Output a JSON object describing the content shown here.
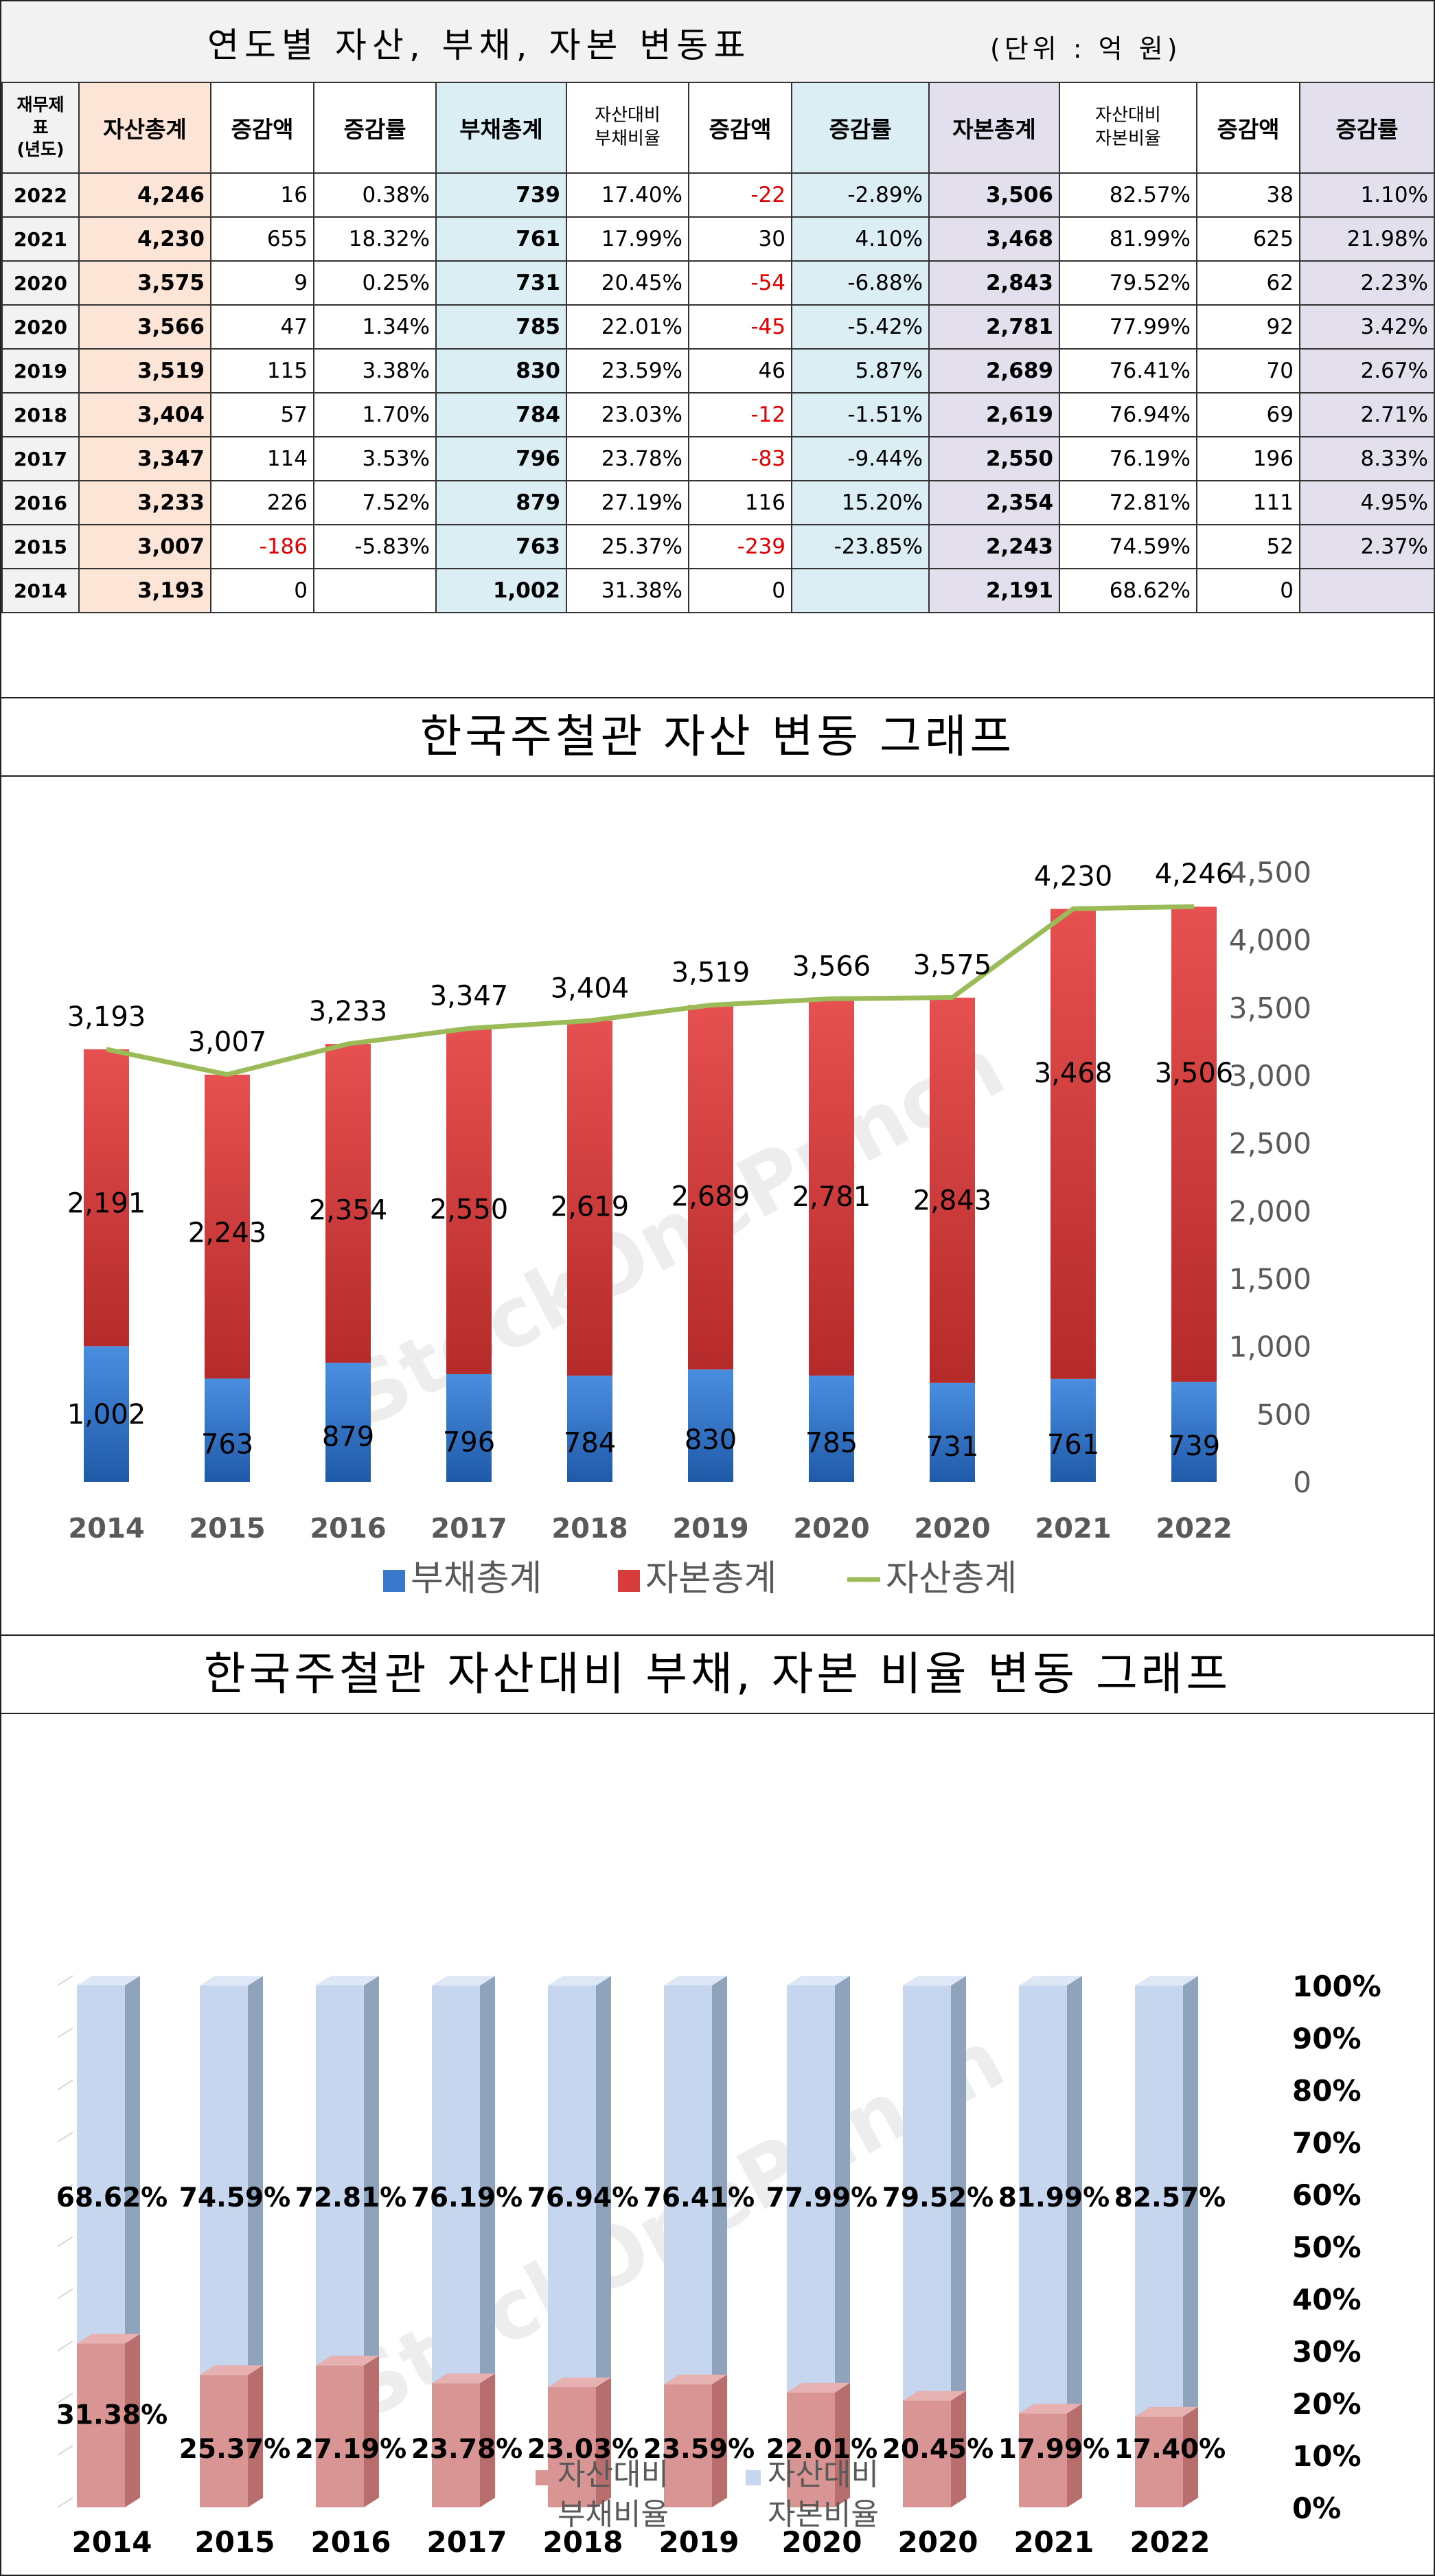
{
  "table": {
    "title": "연도별 자산, 부채, 자본 변동표",
    "unit": "(단위 : 억 원)",
    "headers": {
      "year_l1": "재무제",
      "year_l2": "표",
      "year_l3": "(년도)",
      "assets": "자산총계",
      "asset_change": "증감액",
      "asset_rate": "증감률",
      "liabilities": "부채총계",
      "liab_ratio_l1": "자산대비",
      "liab_ratio_l2": "부채비율",
      "liab_change": "증감액",
      "liab_rate": "증감률",
      "equity": "자본총계",
      "eq_ratio_l1": "자산대비",
      "eq_ratio_l2": "자본비율",
      "eq_change": "증감액",
      "eq_rate": "증감률"
    },
    "rows": [
      {
        "year": "2022",
        "assets": "4,246",
        "asset_change": "16",
        "asset_rate": "0.38%",
        "liabilities": "739",
        "liab_ratio": "17.40%",
        "liab_change": "-22",
        "liab_rate": "-2.89%",
        "equity": "3,506",
        "eq_ratio": "82.57%",
        "eq_change": "38",
        "eq_rate": "1.10%"
      },
      {
        "year": "2021",
        "assets": "4,230",
        "asset_change": "655",
        "asset_rate": "18.32%",
        "liabilities": "761",
        "liab_ratio": "17.99%",
        "liab_change": "30",
        "liab_rate": "4.10%",
        "equity": "3,468",
        "eq_ratio": "81.99%",
        "eq_change": "625",
        "eq_rate": "21.98%"
      },
      {
        "year": "2020",
        "assets": "3,575",
        "asset_change": "9",
        "asset_rate": "0.25%",
        "liabilities": "731",
        "liab_ratio": "20.45%",
        "liab_change": "-54",
        "liab_rate": "-6.88%",
        "equity": "2,843",
        "eq_ratio": "79.52%",
        "eq_change": "62",
        "eq_rate": "2.23%"
      },
      {
        "year": "2020",
        "assets": "3,566",
        "asset_change": "47",
        "asset_rate": "1.34%",
        "liabilities": "785",
        "liab_ratio": "22.01%",
        "liab_change": "-45",
        "liab_rate": "-5.42%",
        "equity": "2,781",
        "eq_ratio": "77.99%",
        "eq_change": "92",
        "eq_rate": "3.42%"
      },
      {
        "year": "2019",
        "assets": "3,519",
        "asset_change": "115",
        "asset_rate": "3.38%",
        "liabilities": "830",
        "liab_ratio": "23.59%",
        "liab_change": "46",
        "liab_rate": "5.87%",
        "equity": "2,689",
        "eq_ratio": "76.41%",
        "eq_change": "70",
        "eq_rate": "2.67%"
      },
      {
        "year": "2018",
        "assets": "3,404",
        "asset_change": "57",
        "asset_rate": "1.70%",
        "liabilities": "784",
        "liab_ratio": "23.03%",
        "liab_change": "-12",
        "liab_rate": "-1.51%",
        "equity": "2,619",
        "eq_ratio": "76.94%",
        "eq_change": "69",
        "eq_rate": "2.71%"
      },
      {
        "year": "2017",
        "assets": "3,347",
        "asset_change": "114",
        "asset_rate": "3.53%",
        "liabilities": "796",
        "liab_ratio": "23.78%",
        "liab_change": "-83",
        "liab_rate": "-9.44%",
        "equity": "2,550",
        "eq_ratio": "76.19%",
        "eq_change": "196",
        "eq_rate": "8.33%"
      },
      {
        "year": "2016",
        "assets": "3,233",
        "asset_change": "226",
        "asset_rate": "7.52%",
        "liabilities": "879",
        "liab_ratio": "27.19%",
        "liab_change": "116",
        "liab_rate": "15.20%",
        "equity": "2,354",
        "eq_ratio": "72.81%",
        "eq_change": "111",
        "eq_rate": "4.95%"
      },
      {
        "year": "2015",
        "assets": "3,007",
        "asset_change": "-186",
        "asset_rate": "-5.83%",
        "liabilities": "763",
        "liab_ratio": "25.37%",
        "liab_change": "-239",
        "liab_rate": "-23.85%",
        "equity": "2,243",
        "eq_ratio": "74.59%",
        "eq_change": "52",
        "eq_rate": "2.37%"
      },
      {
        "year": "2014",
        "assets": "3,193",
        "asset_change": "0",
        "asset_rate": "",
        "liabilities": "1,002",
        "liab_ratio": "31.38%",
        "liab_change": "0",
        "liab_rate": "",
        "equity": "2,191",
        "eq_ratio": "68.62%",
        "eq_change": "0",
        "eq_rate": ""
      }
    ]
  },
  "colors": {
    "liab_bar": "#3a78c9",
    "equity_bar": "#d73b3b",
    "asset_line": "#9bbb59",
    "liab_ratio_bar": "#d99594",
    "eq_ratio_bar": "#c6d6ee",
    "negative_text": "#e00000"
  },
  "chart_data": [
    {
      "type": "bar",
      "title": "한국주철관 자산 변동 그래프",
      "categories": [
        "2014",
        "2015",
        "2016",
        "2017",
        "2018",
        "2019",
        "2020",
        "2020",
        "2021",
        "2022"
      ],
      "series": [
        {
          "name": "부채총계",
          "kind": "stacked-bar",
          "values": [
            1002,
            763,
            879,
            796,
            784,
            830,
            785,
            731,
            761,
            739
          ],
          "labels": [
            "1,002",
            "763",
            "879",
            "796",
            "784",
            "830",
            "785",
            "731",
            "761",
            "739"
          ]
        },
        {
          "name": "자본총계",
          "kind": "stacked-bar",
          "values": [
            2191,
            2243,
            2354,
            2550,
            2619,
            2689,
            2781,
            2843,
            3468,
            3506
          ],
          "labels": [
            "2,191",
            "2,243",
            "2,354",
            "2,550",
            "2,619",
            "2,689",
            "2,781",
            "2,843",
            "3,468",
            "3,506"
          ]
        },
        {
          "name": "자산총계",
          "kind": "line",
          "values": [
            3193,
            3007,
            3233,
            3347,
            3404,
            3519,
            3566,
            3575,
            4230,
            4246
          ],
          "labels": [
            "3,193",
            "3,007",
            "3,233",
            "3,347",
            "3,404",
            "3,519",
            "3,566",
            "3,575",
            "4,230",
            "4,246"
          ]
        }
      ],
      "ylim": [
        0,
        4500
      ],
      "yticks": [
        "0",
        "500",
        "1,000",
        "1,500",
        "2,000",
        "2,500",
        "3,000",
        "3,500",
        "4,000",
        "4,500"
      ],
      "legend_position": "bottom",
      "watermark": "StockOnePunch"
    },
    {
      "type": "bar",
      "title": "한국주철관 자산대비 부채, 자본 비율 변동 그래프",
      "categories": [
        "2014",
        "2015",
        "2016",
        "2017",
        "2018",
        "2019",
        "2020",
        "2020",
        "2021",
        "2022"
      ],
      "series": [
        {
          "name_l1": "자산대비",
          "name_l2": "부채비율",
          "kind": "stacked-bar-3d",
          "values": [
            31.38,
            25.37,
            27.19,
            23.78,
            23.03,
            23.59,
            22.01,
            20.45,
            17.99,
            17.4
          ],
          "labels": [
            "31.38%",
            "25.37%",
            "27.19%",
            "23.78%",
            "23.03%",
            "23.59%",
            "22.01%",
            "20.45%",
            "17.99%",
            "17.40%"
          ]
        },
        {
          "name_l1": "자산대비",
          "name_l2": "자본비율",
          "kind": "stacked-bar-3d",
          "values": [
            68.62,
            74.59,
            72.81,
            76.19,
            76.94,
            76.41,
            77.99,
            79.52,
            81.99,
            82.57
          ],
          "labels": [
            "68.62%",
            "74.59%",
            "72.81%",
            "76.19%",
            "76.94%",
            "76.41%",
            "77.99%",
            "79.52%",
            "81.99%",
            "82.57%"
          ]
        }
      ],
      "ylim": [
        0,
        100
      ],
      "yticks": [
        "0%",
        "10%",
        "20%",
        "30%",
        "40%",
        "50%",
        "60%",
        "70%",
        "80%",
        "90%",
        "100%"
      ],
      "legend_position": "bottom",
      "watermark": "StockOnePunch"
    }
  ]
}
